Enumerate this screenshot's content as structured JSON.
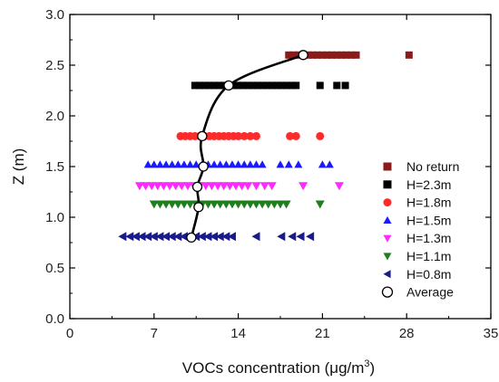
{
  "chart_data": {
    "type": "scatter",
    "xlabel_main": "VOCs concentration (μg/m",
    "xlabel_sup": "3",
    "xlabel_tail": ")",
    "ylabel": "Z (m)",
    "xlim": [
      0,
      35
    ],
    "ylim": [
      0.0,
      3.0
    ],
    "x_ticks": [
      0,
      7,
      14,
      21,
      28,
      35
    ],
    "y_ticks": [
      0.0,
      0.5,
      1.0,
      1.5,
      2.0,
      2.5,
      3.0
    ],
    "x_tick_labels": [
      "0",
      "7",
      "14",
      "21",
      "28",
      "35"
    ],
    "y_tick_labels": [
      "0.0",
      "0.5",
      "1.0",
      "1.5",
      "2.0",
      "2.5",
      "3.0"
    ],
    "grid": false,
    "legend_position": "lower-right",
    "series": [
      {
        "name": "No return",
        "marker": "square",
        "color": "#8b1a1a",
        "z": 2.6,
        "x": [
          18.2,
          18.6,
          19.0,
          19.4,
          19.8,
          20.2,
          20.6,
          21.0,
          21.4,
          21.8,
          22.2,
          22.6,
          23.0,
          23.4,
          23.8,
          28.2
        ]
      },
      {
        "name": "H=2.3m",
        "marker": "square",
        "color": "#000000",
        "z": 2.3,
        "x": [
          10.4,
          10.8,
          11.2,
          11.6,
          12.0,
          12.4,
          12.8,
          13.2,
          13.6,
          14.0,
          14.4,
          14.8,
          15.2,
          15.6,
          16.0,
          16.4,
          16.8,
          17.2,
          17.6,
          18.0,
          18.4,
          18.8,
          20.8,
          22.2,
          22.9
        ]
      },
      {
        "name": "H=1.8m",
        "marker": "circle",
        "color": "#ff2a2a",
        "z": 1.8,
        "x": [
          9.2,
          9.6,
          10.0,
          10.4,
          10.8,
          11.2,
          11.6,
          12.0,
          12.4,
          12.8,
          13.2,
          13.6,
          14.0,
          14.5,
          15.0,
          15.5,
          18.3,
          18.8,
          20.8
        ]
      },
      {
        "name": "H=1.5m",
        "marker": "triangle-up",
        "color": "#1a1aff",
        "z": 1.52,
        "x": [
          6.5,
          7.0,
          7.5,
          8.0,
          8.5,
          9.0,
          9.5,
          10.0,
          10.5,
          11.0,
          11.5,
          12.0,
          12.5,
          13.0,
          13.5,
          14.0,
          14.5,
          15.0,
          15.5,
          16.0,
          17.5,
          18.2,
          19.0,
          21.0,
          21.6
        ]
      },
      {
        "name": "H=1.3m",
        "marker": "triangle-down",
        "color": "#ff2aff",
        "z": 1.31,
        "x": [
          5.8,
          6.3,
          6.8,
          7.3,
          7.8,
          8.3,
          8.8,
          9.3,
          9.8,
          10.3,
          10.8,
          11.3,
          11.8,
          12.3,
          12.8,
          13.3,
          13.8,
          14.3,
          14.8,
          15.5,
          16.2,
          16.8,
          19.4,
          22.4
        ]
      },
      {
        "name": "H=1.1m",
        "marker": "triangle-down",
        "color": "#1f7f1f",
        "z": 1.13,
        "x": [
          7.0,
          7.5,
          8.0,
          8.5,
          9.0,
          9.5,
          10.0,
          10.5,
          11.0,
          11.5,
          12.0,
          12.5,
          13.0,
          13.5,
          14.0,
          14.5,
          15.0,
          15.5,
          16.0,
          16.5,
          17.0,
          17.5,
          18.0,
          20.8
        ]
      },
      {
        "name": "H=0.8m",
        "marker": "triangle-left",
        "color": "#1a1a8b",
        "z": 0.81,
        "x": [
          4.4,
          5.0,
          5.5,
          6.0,
          6.5,
          7.0,
          7.5,
          8.0,
          8.5,
          9.0,
          9.5,
          10.0,
          10.5,
          11.0,
          11.5,
          12.0,
          12.5,
          13.0,
          13.5,
          15.5,
          17.6,
          18.5,
          19.2,
          20.0
        ]
      },
      {
        "name": "Average",
        "marker": "open-circle",
        "color": "#000000",
        "points": [
          {
            "x": 10.1,
            "z": 0.8
          },
          {
            "x": 10.7,
            "z": 1.1
          },
          {
            "x": 10.6,
            "z": 1.3
          },
          {
            "x": 11.1,
            "z": 1.5
          },
          {
            "x": 11.0,
            "z": 1.8
          },
          {
            "x": 13.2,
            "z": 2.3
          },
          {
            "x": 19.4,
            "z": 2.6
          }
        ]
      }
    ]
  }
}
